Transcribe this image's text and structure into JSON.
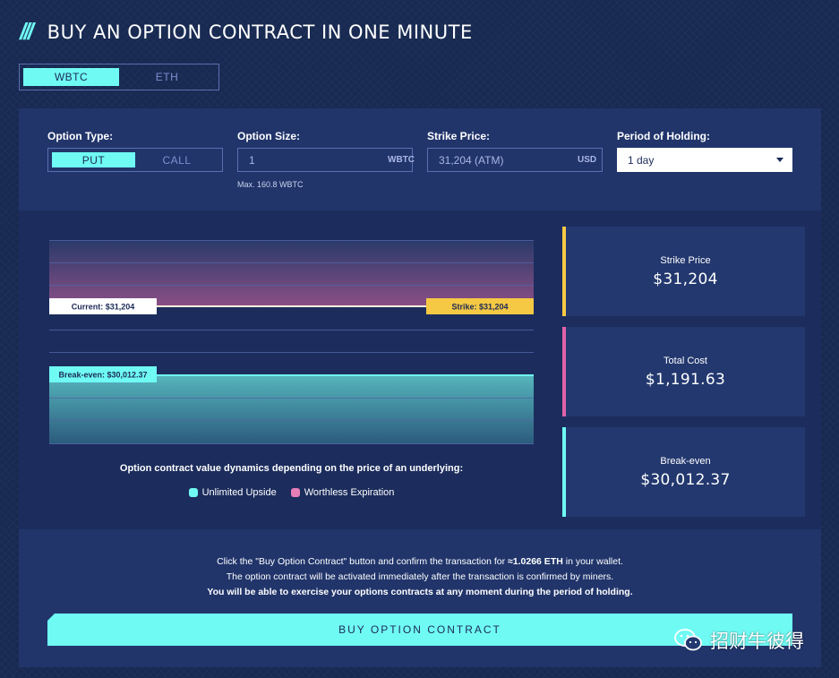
{
  "header": {
    "title": "BUY AN OPTION CONTRACT IN ONE MINUTE"
  },
  "asset_tabs": [
    {
      "label": "WBTC",
      "active": true
    },
    {
      "label": "ETH",
      "active": false
    }
  ],
  "form": {
    "option_type": {
      "label": "Option Type:",
      "options": [
        "PUT",
        "CALL"
      ],
      "selected": "PUT"
    },
    "option_size": {
      "label": "Option Size:",
      "value": "1",
      "unit": "WBTC",
      "max_note": "Max. 160.8 WBTC"
    },
    "strike_price": {
      "label": "Strike Price:",
      "value": "31,204 (ATM)",
      "unit": "USD"
    },
    "period": {
      "label": "Period of Holding:",
      "value": "1 day"
    }
  },
  "chart": {
    "current_label": "Current: $31,204",
    "strike_label": "Strike: $31,204",
    "breakeven_label": "Break-even: $30,012.37",
    "legend_title": "Option contract value dynamics depending on the price of an underlying:",
    "legend": [
      {
        "label": "Unlimited Upside",
        "color": "#6ffbf4"
      },
      {
        "label": "Worthless Expiration",
        "color": "#e77fb6"
      }
    ]
  },
  "stats": [
    {
      "label": "Strike Price",
      "value": "$31,204",
      "color": "#f6c944"
    },
    {
      "label": "Total Cost",
      "value": "$1,191.63",
      "color": "#e063a8"
    },
    {
      "label": "Break-even",
      "value": "$30,012.37",
      "color": "#6ffbf4"
    }
  ],
  "info": {
    "line1_pre": "Click the \"Buy Option Contract\" button and confirm the transaction for ",
    "line1_bold": "≈1.0266 ETH",
    "line1_post": " in your wallet.",
    "line2": "The option contract will be activated immediately after the transaction is confirmed by miners.",
    "line3": "You will be able to exercise your options contracts at any moment during the period of holding."
  },
  "buy_button": "BUY OPTION CONTRACT",
  "watermark": "招财牛彼得",
  "colors": {
    "accent": "#6ffbf4",
    "strike": "#f6c944",
    "cost": "#e063a8",
    "bg": "#182a52"
  }
}
